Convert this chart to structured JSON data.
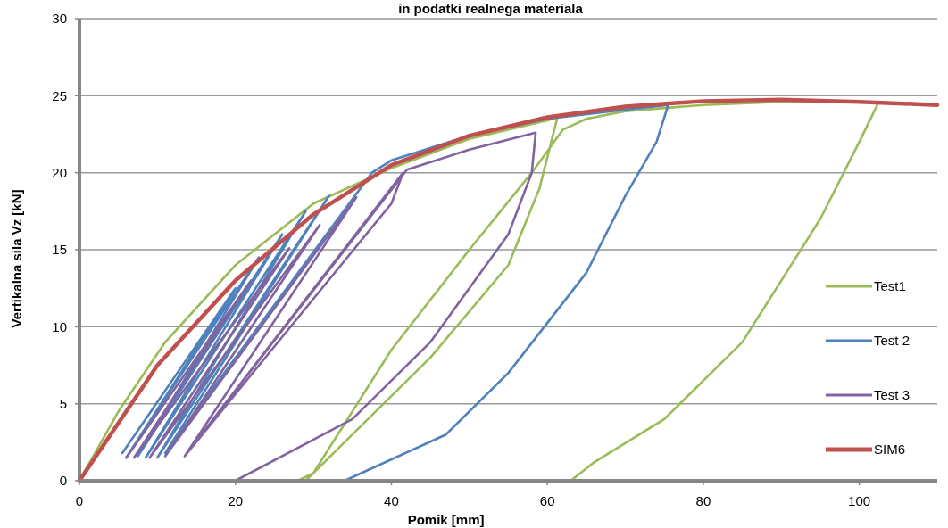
{
  "chart_data": {
    "type": "line",
    "title": "in podatki realnega materiala",
    "xlabel": "Pomik [mm]",
    "ylabel": "Vertikalna sila Vz [kN]",
    "xlim": [
      0,
      110
    ],
    "xticks": [
      0,
      20,
      40,
      60,
      80,
      100
    ],
    "ylim": [
      0,
      30
    ],
    "yticks": [
      0,
      5,
      10,
      15,
      20,
      25,
      30
    ],
    "grid": "y",
    "legend": "right",
    "marker": "none",
    "line_style": "solid",
    "series": [
      {
        "name": "Test1",
        "color": "#9bbb59",
        "x": [
          0,
          5,
          11,
          20,
          30,
          40,
          50,
          60,
          61.3,
          60.5,
          59,
          55,
          45,
          35,
          29,
          28,
          30,
          40,
          50,
          58,
          62,
          65,
          70,
          80,
          90,
          102.5,
          100,
          95,
          85,
          75,
          66,
          63
        ],
        "values": [
          0,
          4.5,
          9,
          14,
          18,
          20.3,
          22.2,
          23.4,
          23.6,
          22,
          19,
          14,
          8,
          3,
          0,
          0,
          0.5,
          8.5,
          15,
          20,
          22.8,
          23.5,
          24,
          24.4,
          24.6,
          24.6,
          22,
          17,
          9,
          4,
          1.2,
          0
        ]
      },
      {
        "name": "Test 2",
        "color": "#4f81bd",
        "x": [
          5.5,
          20,
          6,
          23,
          7.5,
          26,
          8.5,
          29,
          10,
          32,
          11,
          37.5,
          40,
          50,
          60,
          70,
          75.5,
          74,
          70,
          65,
          55,
          47,
          34
        ],
        "values": [
          1.8,
          12.5,
          1.5,
          14.5,
          1.6,
          16,
          1.5,
          17.5,
          1.5,
          18.5,
          1.8,
          20,
          20.8,
          22.4,
          23.5,
          24.1,
          24.4,
          22,
          18.5,
          13.5,
          7,
          3,
          0
        ]
      },
      {
        "name": "Test 3",
        "color": "#8064a2",
        "x": [
          6,
          22,
          7,
          26.9,
          9,
          30.8,
          11,
          35.5,
          13.5,
          41.5,
          40,
          13.5,
          42,
          50,
          58.5,
          58,
          55,
          45,
          35,
          20
        ],
        "values": [
          1.5,
          13,
          1.5,
          15.1,
          1.5,
          16.6,
          1.6,
          18.4,
          1.6,
          20,
          18,
          1.6,
          20.2,
          21.5,
          22.6,
          20,
          16,
          9,
          4,
          0
        ]
      },
      {
        "name": "SIM6",
        "color": "#c0504d",
        "x": [
          0,
          10,
          20,
          30,
          40,
          50,
          60,
          70,
          80,
          90,
          100,
          110
        ],
        "values": [
          0,
          7.5,
          13,
          17.3,
          20.5,
          22.4,
          23.6,
          24.3,
          24.65,
          24.75,
          24.6,
          24.4
        ]
      }
    ]
  }
}
